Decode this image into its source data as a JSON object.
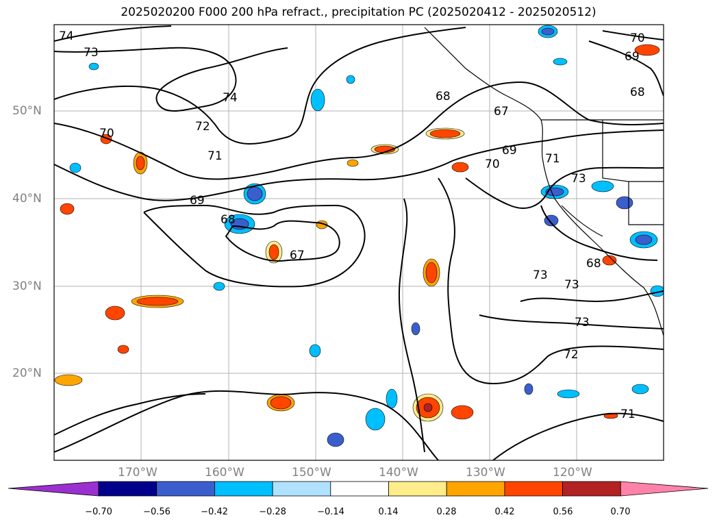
{
  "title": "2025020200 F000 200 hPa refract., precipitation PC (2025020412 - 2025020512)",
  "latitude_labels": [
    "50°N",
    "40°N",
    "30°N",
    "20°N"
  ],
  "longitude_labels": [
    "170°W",
    "160°W",
    "150°W",
    "140°W",
    "130°W",
    "120°W"
  ],
  "colorbar": {
    "tick_labels": [
      "−0.70",
      "−0.56",
      "−0.42",
      "−0.28",
      "−0.14",
      "0.14",
      "0.28",
      "0.42",
      "0.56",
      "0.70"
    ],
    "colors": [
      "#9b30d0",
      "#00008b",
      "#3a5fcd",
      "#00bfff",
      "#b0e2ff",
      "#ffffff",
      "#ffec8b",
      "#ffa500",
      "#ff4500",
      "#b22222",
      "#ff82ab"
    ]
  },
  "contour_labels": [
    "74",
    "73",
    "74",
    "72",
    "71",
    "70",
    "69",
    "68",
    "67",
    "68",
    "67",
    "69",
    "70",
    "71",
    "73",
    "73",
    "73",
    "73",
    "72",
    "71",
    "70",
    "69",
    "68",
    "68"
  ]
}
